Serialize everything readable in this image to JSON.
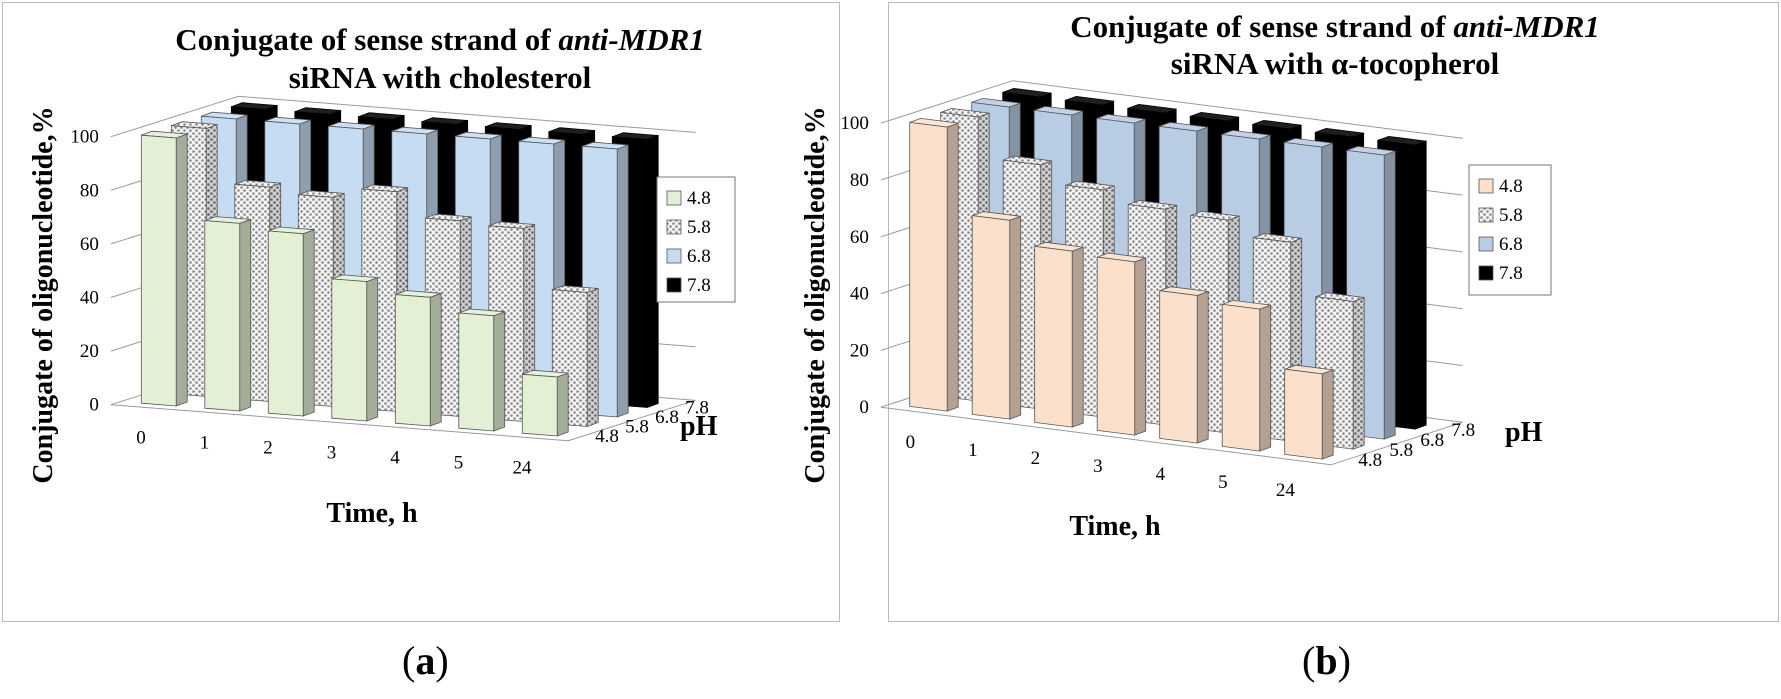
{
  "panels": [
    {
      "panel_label": "a",
      "chart_data": {
        "type": "bar3d",
        "title_lines": [
          "Conjugate of sense strand of ",
          "anti-MDR1",
          "siRNA with cholesterol"
        ],
        "title": "Conjugate of sense strand of anti-MDR1 siRNA with cholesterol",
        "xlabel": "Time, h",
        "ylabel": "Conjugate of oligonucleotide,%",
        "zlabel": "pH",
        "categories": [
          "0",
          "1",
          "2",
          "3",
          "4",
          "5",
          "24"
        ],
        "z_categories": [
          "4.8",
          "5.8",
          "6.8",
          "7.8"
        ],
        "yticks": [
          "0",
          "20",
          "40",
          "60",
          "80",
          "100"
        ],
        "ylim": [
          0,
          100
        ],
        "series": [
          {
            "name": "4.8",
            "values": [
              100,
              70,
              68,
              52,
              48,
              43,
              22
            ]
          },
          {
            "name": "5.8",
            "values": [
              100,
              80,
              78,
              82,
              73,
              72,
              50
            ]
          },
          {
            "name": "6.8",
            "values": [
              100,
              100,
              100,
              100,
              100,
              100,
              100
            ]
          },
          {
            "name": "7.8",
            "values": [
              100,
              100,
              100,
              100,
              100,
              100,
              100
            ]
          }
        ],
        "legend": [
          "4.8",
          "5.8",
          "6.8",
          "7.8"
        ],
        "legend_position": "right"
      }
    },
    {
      "panel_label": "b",
      "chart_data": {
        "type": "bar3d",
        "title_lines": [
          "Conjugate of sense strand of ",
          "anti-MDR1",
          "siRNA with α-tocopherol"
        ],
        "title": "Conjugate of sense strand of anti-MDR1 siRNA with α-tocopherol",
        "xlabel": "Time, h",
        "ylabel": "Conjugate of oligonucleotide,%",
        "zlabel": "pH",
        "categories": [
          "0",
          "1",
          "2",
          "3",
          "4",
          "5",
          "24"
        ],
        "z_categories": [
          "4.8",
          "5.8",
          "6.8",
          "7.8"
        ],
        "yticks": [
          "0",
          "20",
          "40",
          "60",
          "80",
          "100"
        ],
        "ylim": [
          0,
          100
        ],
        "series": [
          {
            "name": "4.8",
            "values": [
              100,
              70,
              62,
              61,
              52,
              50,
              30
            ]
          },
          {
            "name": "5.8",
            "values": [
              100,
              86,
              80,
              76,
              75,
              70,
              52
            ]
          },
          {
            "name": "6.8",
            "values": [
              100,
              100,
              100,
              100,
              100,
              100,
              100
            ]
          },
          {
            "name": "7.8",
            "values": [
              100,
              100,
              100,
              100,
              100,
              100,
              100
            ]
          }
        ],
        "legend": [
          "4.8",
          "5.8",
          "6.8",
          "7.8"
        ],
        "legend_position": "right"
      }
    }
  ],
  "colors": {
    "a": [
      "#e3f0d6",
      "#dcdcdc",
      "#c6dcf2",
      "#000000"
    ],
    "b": [
      "#fbe0cc",
      "#dcdcdc",
      "#b8cce4",
      "#000000"
    ]
  }
}
